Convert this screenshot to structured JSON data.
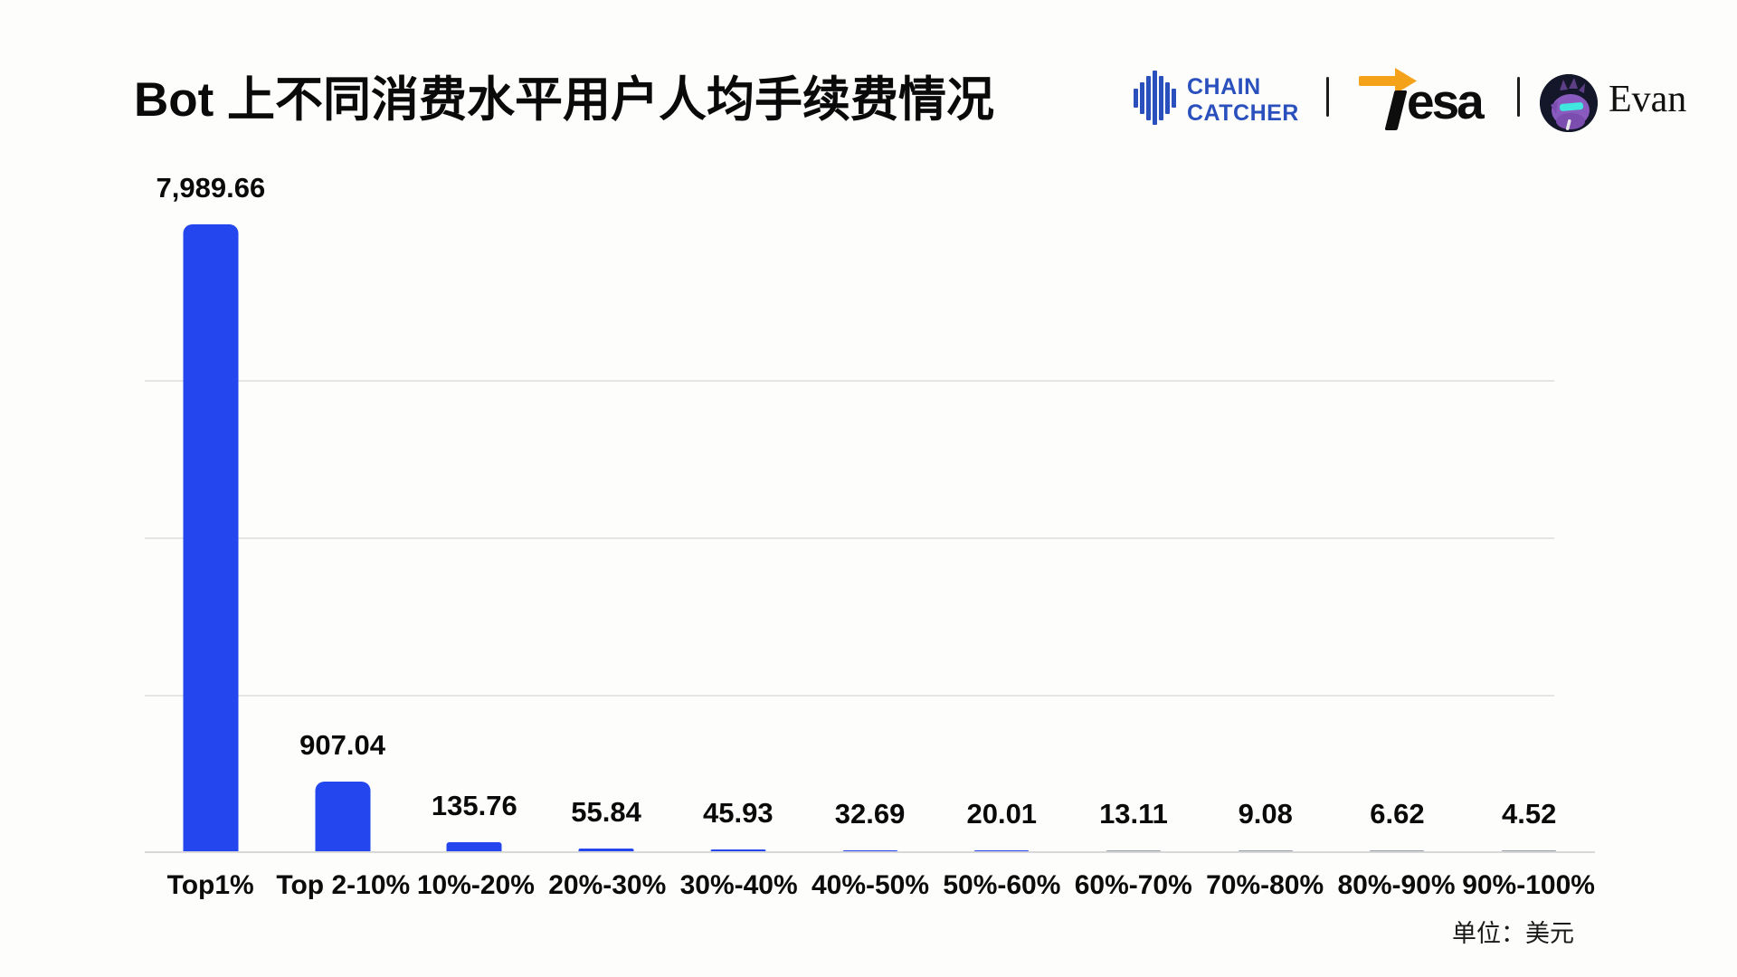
{
  "page": {
    "title": "Bot 上不同消费水平用户人均手续费情况",
    "unit_note": "单位：美元"
  },
  "branding": {
    "chaincatcher": {
      "name": "CHAIN CATCHER",
      "line1": "CHAIN",
      "line2": "CATCHER",
      "color": "#2A50BE",
      "icon": "chaincatcher-bars-icon"
    },
    "tesa": {
      "name": "Tesa",
      "wordmark_tail": "esa",
      "arrow_color": "#F5A21B",
      "text_color": "#0D0D0D",
      "icon": "tesa-arrow-icon"
    },
    "author": {
      "name": "Evan",
      "avatar": "purple-creature-avatar"
    }
  },
  "chart_data": {
    "type": "bar",
    "title": "Bot 上不同消费水平用户人均手续费情况",
    "unit": "美元",
    "categories": [
      "Top1%",
      "Top 2-10%",
      "10%-20%",
      "20%-30%",
      "30%-40%",
      "40%-50%",
      "50%-60%",
      "60%-70%",
      "70%-80%",
      "80%-90%",
      "90%-100%"
    ],
    "values": [
      7989.66,
      907.04,
      135.76,
      55.84,
      45.93,
      32.69,
      20.01,
      13.11,
      9.08,
      6.62,
      4.52
    ],
    "value_labels": [
      "7,989.66",
      "907.04",
      "135.76",
      "55.84",
      "45.93",
      "32.69",
      "20.01",
      "13.11",
      "9.08",
      "6.62",
      "4.52"
    ],
    "ylim": [
      0,
      8000
    ],
    "gridlines": [
      2000,
      4000,
      6000
    ],
    "grid": "horizontal-only",
    "legend": "none",
    "bar_color": "#2346EE",
    "tiny_bar_color": "#949DA9",
    "axis_line_color": "#D8D8D8",
    "xlabel": "",
    "ylabel": ""
  }
}
